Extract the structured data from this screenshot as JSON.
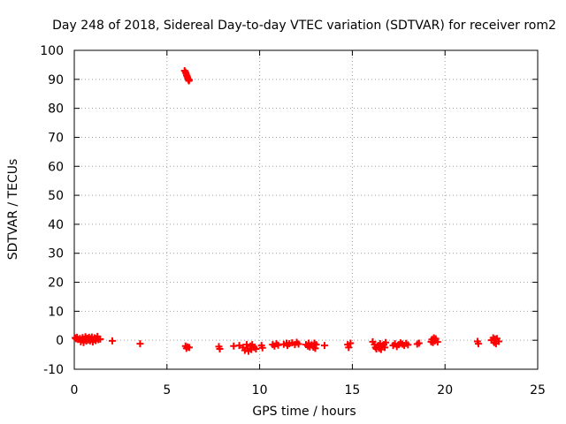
{
  "chart_data": {
    "type": "scatter",
    "title": "Day 248 of 2018, Sidereal Day-to-day VTEC variation (SDTVAR) for receiver rom2",
    "xlabel": "GPS time / hours",
    "ylabel": "SDTVAR / TECUs",
    "xlim": [
      0,
      25
    ],
    "ylim": [
      -10,
      100
    ],
    "xticks": [
      0,
      5,
      10,
      15,
      20,
      25
    ],
    "yticks": [
      -10,
      0,
      10,
      20,
      30,
      40,
      50,
      60,
      70,
      80,
      90,
      100
    ],
    "grid": true,
    "marker": "plus",
    "color": "#ff0000",
    "series": [
      {
        "name": "SDTVAR",
        "points": [
          [
            0.05,
            0.8
          ],
          [
            0.1,
            0.5
          ],
          [
            0.15,
            1.0
          ],
          [
            0.2,
            0.3
          ],
          [
            0.3,
            0.6
          ],
          [
            0.35,
            -0.5
          ],
          [
            0.4,
            0.2
          ],
          [
            0.45,
            0.9
          ],
          [
            0.5,
            -0.8
          ],
          [
            0.55,
            0.4
          ],
          [
            0.6,
            1.2
          ],
          [
            0.65,
            -0.3
          ],
          [
            0.7,
            0.7
          ],
          [
            0.75,
            0.1
          ],
          [
            0.8,
            1.0
          ],
          [
            0.85,
            -0.2
          ],
          [
            0.9,
            0.5
          ],
          [
            0.95,
            1.1
          ],
          [
            1.0,
            -0.6
          ],
          [
            1.05,
            0.3
          ],
          [
            1.1,
            0.8
          ],
          [
            1.15,
            -0.1
          ],
          [
            1.2,
            0.6
          ],
          [
            1.25,
            1.3
          ],
          [
            1.3,
            0.2
          ],
          [
            1.4,
            0.4
          ],
          [
            2.05,
            -0.2
          ],
          [
            3.55,
            -1.2
          ],
          [
            5.95,
            93.0
          ],
          [
            6.0,
            92.5
          ],
          [
            6.03,
            92.0
          ],
          [
            6.06,
            91.4
          ],
          [
            6.09,
            91.0
          ],
          [
            6.12,
            90.5
          ],
          [
            6.15,
            90.0
          ],
          [
            6.18,
            89.5
          ],
          [
            6.2,
            89.8
          ],
          [
            6.0,
            -2.0
          ],
          [
            6.05,
            -2.8
          ],
          [
            6.1,
            -2.3
          ],
          [
            6.2,
            -2.5
          ],
          [
            7.8,
            -2.2
          ],
          [
            7.85,
            -3.0
          ],
          [
            8.6,
            -2.0
          ],
          [
            8.9,
            -1.8
          ],
          [
            9.1,
            -2.5
          ],
          [
            9.2,
            -3.5
          ],
          [
            9.3,
            -1.5
          ],
          [
            9.35,
            -2.8
          ],
          [
            9.4,
            -3.8
          ],
          [
            9.5,
            -2.0
          ],
          [
            9.55,
            -3.2
          ],
          [
            9.6,
            -1.5
          ],
          [
            9.7,
            -2.5
          ],
          [
            9.8,
            -3.0
          ],
          [
            10.1,
            -1.8
          ],
          [
            10.15,
            -2.6
          ],
          [
            10.7,
            -1.5
          ],
          [
            10.8,
            -2.0
          ],
          [
            10.9,
            -1.2
          ],
          [
            11.0,
            -1.7
          ],
          [
            11.3,
            -1.4
          ],
          [
            11.45,
            -1.0
          ],
          [
            11.5,
            -1.8
          ],
          [
            11.6,
            -1.2
          ],
          [
            11.75,
            -0.9
          ],
          [
            11.9,
            -1.5
          ],
          [
            12.0,
            -0.7
          ],
          [
            12.1,
            -1.3
          ],
          [
            12.5,
            -1.5
          ],
          [
            12.6,
            -2.0
          ],
          [
            12.65,
            -1.0
          ],
          [
            12.7,
            -2.3
          ],
          [
            12.8,
            -1.6
          ],
          [
            12.9,
            -2.4
          ],
          [
            12.95,
            -1.0
          ],
          [
            13.0,
            -2.8
          ],
          [
            13.05,
            -1.5
          ],
          [
            13.5,
            -1.8
          ],
          [
            14.75,
            -1.5
          ],
          [
            14.8,
            -2.5
          ],
          [
            14.9,
            -1.0
          ],
          [
            16.1,
            -0.5
          ],
          [
            16.2,
            -1.5
          ],
          [
            16.25,
            -2.5
          ],
          [
            16.3,
            -3.0
          ],
          [
            16.4,
            -1.8
          ],
          [
            16.45,
            -2.8
          ],
          [
            16.5,
            -1.2
          ],
          [
            16.55,
            -3.2
          ],
          [
            16.6,
            -2.0
          ],
          [
            16.7,
            -1.5
          ],
          [
            16.75,
            -2.5
          ],
          [
            16.8,
            -0.8
          ],
          [
            17.2,
            -1.8
          ],
          [
            17.3,
            -1.2
          ],
          [
            17.4,
            -2.2
          ],
          [
            17.5,
            -1.5
          ],
          [
            17.6,
            -0.9
          ],
          [
            17.7,
            -1.3
          ],
          [
            17.8,
            -1.8
          ],
          [
            17.9,
            -1.1
          ],
          [
            18.0,
            -1.6
          ],
          [
            18.5,
            -1.3
          ],
          [
            18.6,
            -1.0
          ],
          [
            19.25,
            -0.5
          ],
          [
            19.3,
            0.3
          ],
          [
            19.35,
            -0.8
          ],
          [
            19.4,
            0.8
          ],
          [
            19.45,
            -0.2
          ],
          [
            19.5,
            0.5
          ],
          [
            19.6,
            -0.6
          ],
          [
            21.75,
            -0.4
          ],
          [
            21.8,
            -1.2
          ],
          [
            22.5,
            0.0
          ],
          [
            22.6,
            0.8
          ],
          [
            22.65,
            -0.8
          ],
          [
            22.7,
            0.4
          ],
          [
            22.75,
            -1.2
          ],
          [
            22.8,
            0.6
          ],
          [
            22.9,
            -0.4
          ]
        ]
      }
    ]
  }
}
